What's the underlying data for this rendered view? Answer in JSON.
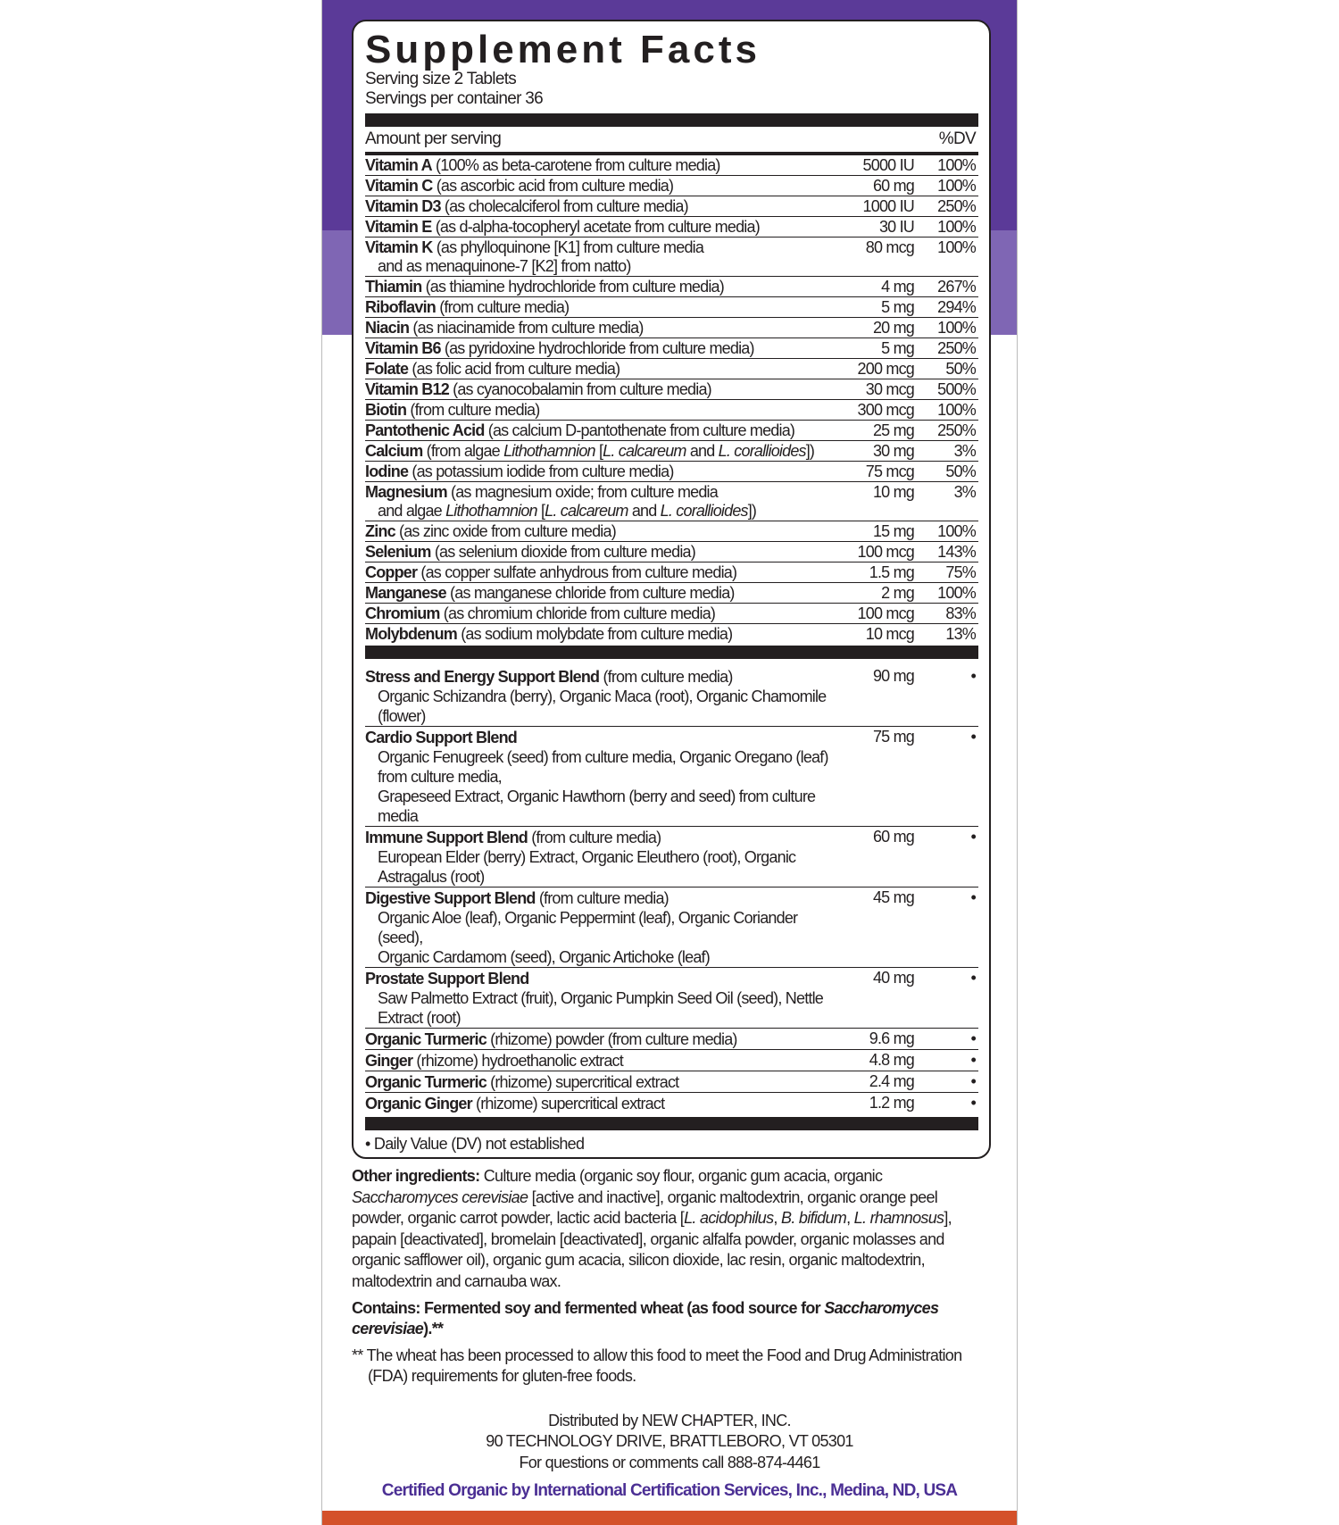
{
  "colors": {
    "purple_dark": "#5b3a98",
    "purple_light": "#7f66b4",
    "orange": "#d4512a",
    "cert_text": "#4b2f94"
  },
  "title": "Supplement Facts",
  "serving_size": "Serving size 2 Tablets",
  "servings_per_container": "Servings per container 36",
  "amount_per_serving": "Amount per serving",
  "dv_header": "%DV",
  "nutrients": [
    {
      "name": "Vitamin A",
      "desc": [
        [
          {
            "t": " (100% as beta-carotene from culture media)"
          }
        ]
      ],
      "amount": "5000 IU",
      "dv": "100%"
    },
    {
      "name": "Vitamin C",
      "desc": [
        [
          {
            "t": " (as ascorbic acid from culture media)"
          }
        ]
      ],
      "amount": "60 mg",
      "dv": "100%"
    },
    {
      "name": "Vitamin D3",
      "desc": [
        [
          {
            "t": " (as cholecalciferol from culture media)"
          }
        ]
      ],
      "amount": "1000 IU",
      "dv": "250%"
    },
    {
      "name": "Vitamin E",
      "desc": [
        [
          {
            "t": " (as d-alpha-tocopheryl acetate from culture media)"
          }
        ]
      ],
      "amount": "30 IU",
      "dv": "100%"
    },
    {
      "name": "Vitamin K",
      "desc": [
        [
          {
            "t": " (as phylloquinone [K1] from culture media"
          }
        ],
        [
          {
            "t": "and as menaquinone-7 [K2] from natto)"
          }
        ]
      ],
      "amount": "80 mcg",
      "dv": "100%"
    },
    {
      "name": "Thiamin",
      "desc": [
        [
          {
            "t": " (as thiamine hydrochloride from culture media)"
          }
        ]
      ],
      "amount": "4 mg",
      "dv": "267%"
    },
    {
      "name": "Riboflavin",
      "desc": [
        [
          {
            "t": " (from culture media)"
          }
        ]
      ],
      "amount": "5 mg",
      "dv": "294%"
    },
    {
      "name": "Niacin",
      "desc": [
        [
          {
            "t": " (as niacinamide from culture media)"
          }
        ]
      ],
      "amount": "20 mg",
      "dv": "100%"
    },
    {
      "name": "Vitamin B6",
      "desc": [
        [
          {
            "t": " (as pyridoxine hydrochloride from culture media)"
          }
        ]
      ],
      "amount": "5 mg",
      "dv": "250%"
    },
    {
      "name": "Folate",
      "desc": [
        [
          {
            "t": " (as folic acid from culture media)"
          }
        ]
      ],
      "amount": "200 mcg",
      "dv": "50%"
    },
    {
      "name": "Vitamin B12",
      "desc": [
        [
          {
            "t": " (as cyanocobalamin from culture media)"
          }
        ]
      ],
      "amount": "30 mcg",
      "dv": "500%"
    },
    {
      "name": "Biotin",
      "desc": [
        [
          {
            "t": " (from culture media)"
          }
        ]
      ],
      "amount": "300 mcg",
      "dv": "100%"
    },
    {
      "name": "Pantothenic Acid",
      "desc": [
        [
          {
            "t": " (as calcium D-pantothenate from culture media)"
          }
        ]
      ],
      "amount": "25 mg",
      "dv": "250%"
    },
    {
      "name": "Calcium",
      "desc": [
        [
          {
            "t": " (from algae "
          },
          {
            "t": "Lithothamnion",
            "i": true
          },
          {
            "t": " ["
          },
          {
            "t": "L. calcareum",
            "i": true
          },
          {
            "t": " and "
          },
          {
            "t": "L. corallioides",
            "i": true
          },
          {
            "t": "])"
          }
        ]
      ],
      "amount": "30 mg",
      "dv": "3%"
    },
    {
      "name": "Iodine",
      "desc": [
        [
          {
            "t": " (as potassium iodide from culture media)"
          }
        ]
      ],
      "amount": "75 mcg",
      "dv": "50%"
    },
    {
      "name": "Magnesium",
      "desc": [
        [
          {
            "t": " (as magnesium oxide; from culture media"
          }
        ],
        [
          {
            "t": "and algae "
          },
          {
            "t": "Lithothamnion",
            "i": true
          },
          {
            "t": " ["
          },
          {
            "t": "L. calcareum",
            "i": true
          },
          {
            "t": " and "
          },
          {
            "t": "L. corallioides",
            "i": true
          },
          {
            "t": "])"
          }
        ]
      ],
      "amount": "10 mg",
      "dv": "3%"
    },
    {
      "name": "Zinc",
      "desc": [
        [
          {
            "t": " (as zinc oxide from culture media)"
          }
        ]
      ],
      "amount": "15 mg",
      "dv": "100%"
    },
    {
      "name": "Selenium",
      "desc": [
        [
          {
            "t": " (as selenium dioxide from culture media)"
          }
        ]
      ],
      "amount": "100 mcg",
      "dv": "143%"
    },
    {
      "name": "Copper",
      "desc": [
        [
          {
            "t": " (as copper sulfate anhydrous from culture media)"
          }
        ]
      ],
      "amount": "1.5 mg",
      "dv": "75%"
    },
    {
      "name": "Manganese",
      "desc": [
        [
          {
            "t": " (as manganese chloride from culture media)"
          }
        ]
      ],
      "amount": "2 mg",
      "dv": "100%"
    },
    {
      "name": "Chromium",
      "desc": [
        [
          {
            "t": " (as chromium chloride from culture media)"
          }
        ]
      ],
      "amount": "100 mcg",
      "dv": "83%"
    },
    {
      "name": "Molybdenum",
      "desc": [
        [
          {
            "t": " (as sodium molybdate from culture media)"
          }
        ]
      ],
      "amount": "10 mcg",
      "dv": "13%"
    }
  ],
  "blends": [
    {
      "name": "Stress and Energy Support Blend",
      "desc": [
        [
          {
            "t": " (from culture media)"
          }
        ],
        [
          {
            "t": "Organic Schizandra (berry), Organic Maca (root), Organic Chamomile (flower)"
          }
        ]
      ],
      "amount": "90 mg",
      "dv": "•"
    },
    {
      "name": "Cardio Support Blend",
      "desc": [
        [
          {
            "t": ""
          }
        ],
        [
          {
            "t": "Organic Fenugreek (seed) from culture media, Organic Oregano (leaf) from culture media,"
          }
        ],
        [
          {
            "t": "Grapeseed Extract, Organic Hawthorn (berry and seed) from culture media"
          }
        ]
      ],
      "amount": "75 mg",
      "dv": "•"
    },
    {
      "name": "Immune Support Blend",
      "desc": [
        [
          {
            "t": " (from culture media)"
          }
        ],
        [
          {
            "t": "European Elder (berry) Extract, Organic Eleuthero (root), Organic Astragalus (root)"
          }
        ]
      ],
      "amount": "60 mg",
      "dv": "•"
    },
    {
      "name": "Digestive Support Blend",
      "desc": [
        [
          {
            "t": " (from culture media)"
          }
        ],
        [
          {
            "t": "Organic Aloe (leaf), Organic Peppermint (leaf), Organic Coriander (seed),"
          }
        ],
        [
          {
            "t": "Organic Cardamom (seed), Organic Artichoke (leaf)"
          }
        ]
      ],
      "amount": "45 mg",
      "dv": "•"
    },
    {
      "name": "Prostate Support Blend",
      "desc": [
        [
          {
            "t": ""
          }
        ],
        [
          {
            "t": "Saw Palmetto Extract (fruit), Organic Pumpkin Seed Oil (seed), Nettle Extract (root)"
          }
        ]
      ],
      "amount": "40 mg",
      "dv": "•"
    },
    {
      "name": "Organic Turmeric",
      "desc": [
        [
          {
            "t": " (rhizome) powder (from culture media)"
          }
        ]
      ],
      "amount": "9.6 mg",
      "dv": "•"
    },
    {
      "name": "Ginger",
      "desc": [
        [
          {
            "t": " (rhizome) hydroethanolic extract"
          }
        ]
      ],
      "amount": "4.8 mg",
      "dv": "•"
    },
    {
      "name": "Organic Turmeric",
      "desc": [
        [
          {
            "t": " (rhizome) supercritical extract"
          }
        ]
      ],
      "amount": "2.4 mg",
      "dv": "•"
    },
    {
      "name": "Organic Ginger",
      "desc": [
        [
          {
            "t": " (rhizome) supercritical extract"
          }
        ]
      ],
      "amount": "1.2 mg",
      "dv": "•"
    }
  ],
  "footnote": "• Daily Value (DV) not established",
  "other_ingredients": {
    "label": "Other ingredients:",
    "text": [
      {
        "t": " Culture media (organic soy flour, organic gum acacia, organic "
      },
      {
        "t": "Saccharomyces cerevisiae",
        "i": true
      },
      {
        "t": " [active and inactive], organic maltodextrin, organic orange peel powder, organic carrot powder, lactic acid bacteria ["
      },
      {
        "t": "L. acidophilus",
        "i": true
      },
      {
        "t": ", "
      },
      {
        "t": "B. bifidum",
        "i": true
      },
      {
        "t": ", "
      },
      {
        "t": "L. rhamnosus",
        "i": true
      },
      {
        "t": "], papain [deactivated], bromelain [deactivated], organic alfalfa powder, organic molasses and organic safflower oil), organic gum acacia, silicon dioxide, lac resin, organic maltodextrin, maltodextrin and carnauba wax."
      }
    ]
  },
  "contains": [
    {
      "t": "Contains: Fermented soy and fermented wheat (as food source for "
    },
    {
      "t": "Saccharomyces cerevisiae",
      "i": true
    },
    {
      "t": ").**"
    }
  ],
  "wheat_note": "** The wheat has been processed to allow this food to meet the Food and Drug Administration (FDA) requirements for gluten-free foods.",
  "distributor": {
    "line1": "Distributed by NEW CHAPTER, INC.",
    "line2": "90 TECHNOLOGY DRIVE, BRATTLEBORO, VT 05301",
    "line3": "For questions or comments call 888-874-4461"
  },
  "certification": "Certified Organic by International Certification Services, Inc., Medina, ND, USA"
}
